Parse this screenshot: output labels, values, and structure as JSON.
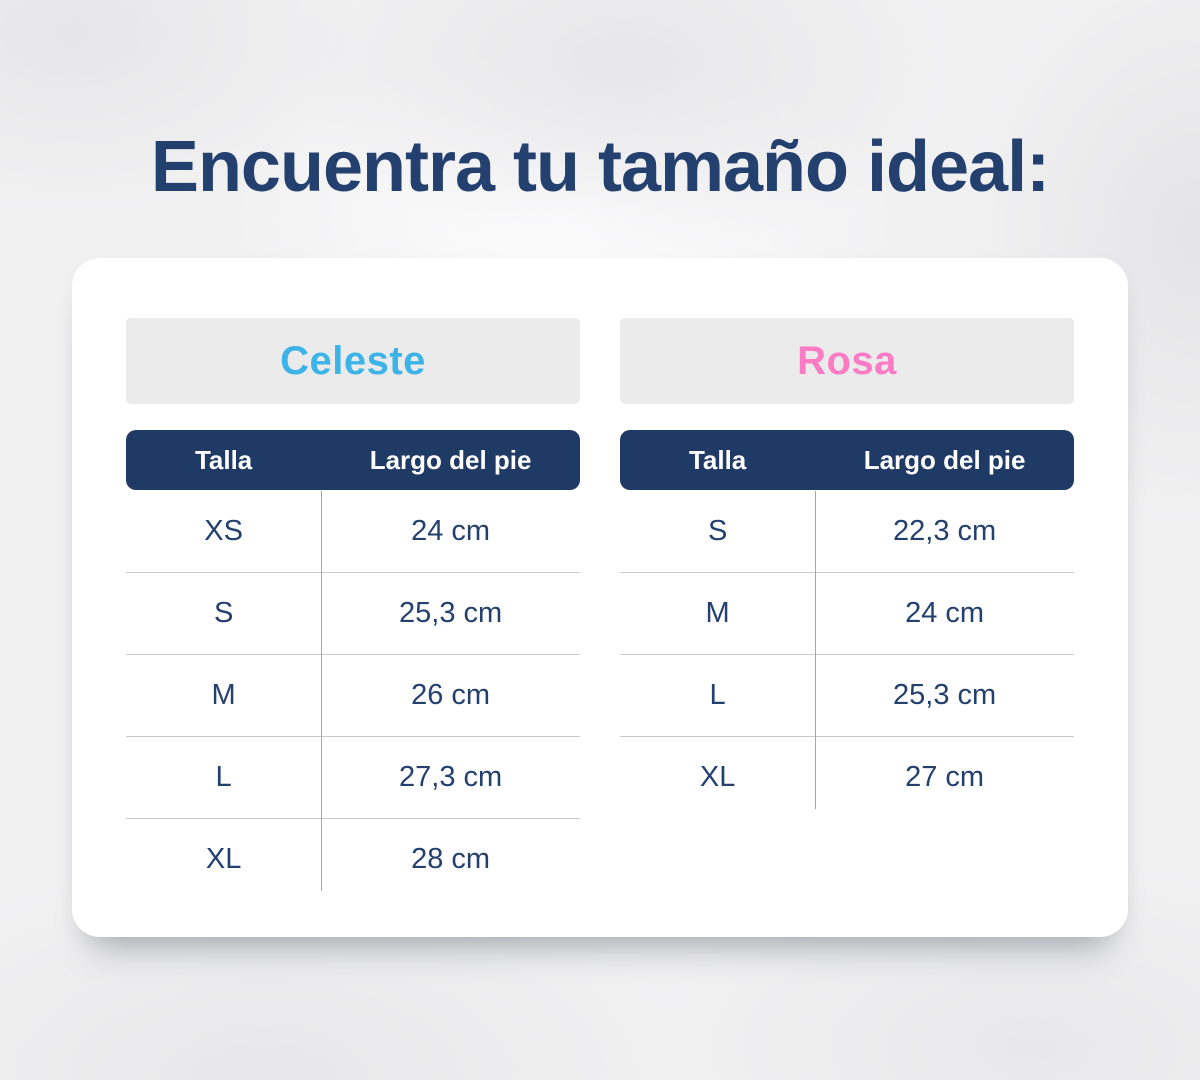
{
  "page": {
    "title": "Encuentra tu tamaño ideal:"
  },
  "colors": {
    "title_navy": "#24406e",
    "header_navy": "#1f3a64",
    "cell_navy": "#24406e",
    "celeste_accent": "#3cb4e7",
    "rosa_accent": "#fb7cc4",
    "banner_gray": "#ebebec",
    "card_white": "#ffffff",
    "background_gray": "#f1f1f2"
  },
  "chart_data": [
    {
      "type": "table",
      "title": "Celeste",
      "accent_color": "#3cb4e7",
      "columns": [
        "Talla",
        "Largo del pie"
      ],
      "rows": [
        [
          "XS",
          "24 cm"
        ],
        [
          "S",
          "25,3 cm"
        ],
        [
          "M",
          "26 cm"
        ],
        [
          "L",
          "27,3 cm"
        ],
        [
          "XL",
          "28 cm"
        ]
      ]
    },
    {
      "type": "table",
      "title": "Rosa",
      "accent_color": "#fb7cc4",
      "columns": [
        "Talla",
        "Largo del pie"
      ],
      "rows": [
        [
          "S",
          "22,3 cm"
        ],
        [
          "M",
          "24 cm"
        ],
        [
          "L",
          "25,3 cm"
        ],
        [
          "XL",
          "27 cm"
        ]
      ]
    }
  ]
}
